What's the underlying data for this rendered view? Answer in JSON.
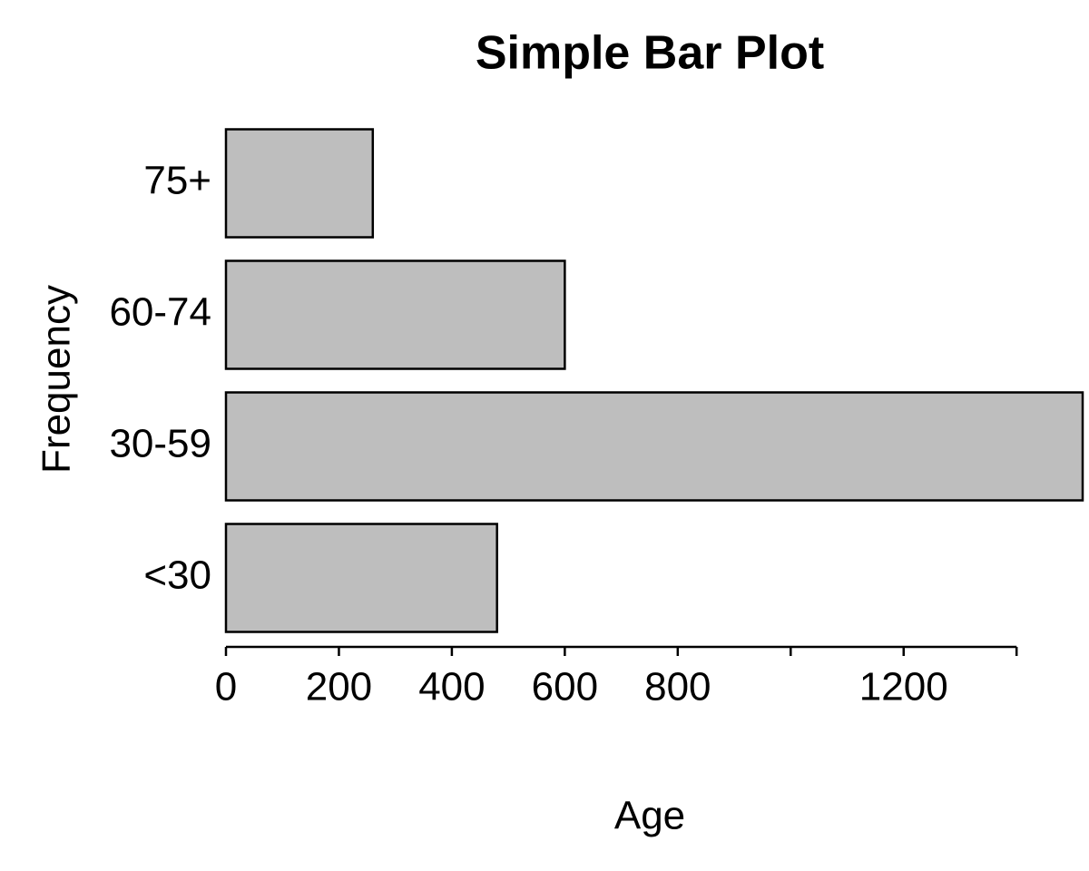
{
  "chart_data": {
    "type": "barh",
    "title": "Simple Bar Plot",
    "x_label": "Age",
    "y_label": "Frequency",
    "categories": [
      "<30",
      "30-59",
      "60-74",
      "75+"
    ],
    "values": [
      480,
      1517,
      600,
      260
    ],
    "color": "#bebebe",
    "xlim": [
      0,
      1517
    ],
    "xticks": [
      0,
      200,
      400,
      600,
      800,
      {
        "value": 1000,
        "label": null
      },
      1200,
      {
        "value": 1400,
        "label": null
      }
    ]
  }
}
